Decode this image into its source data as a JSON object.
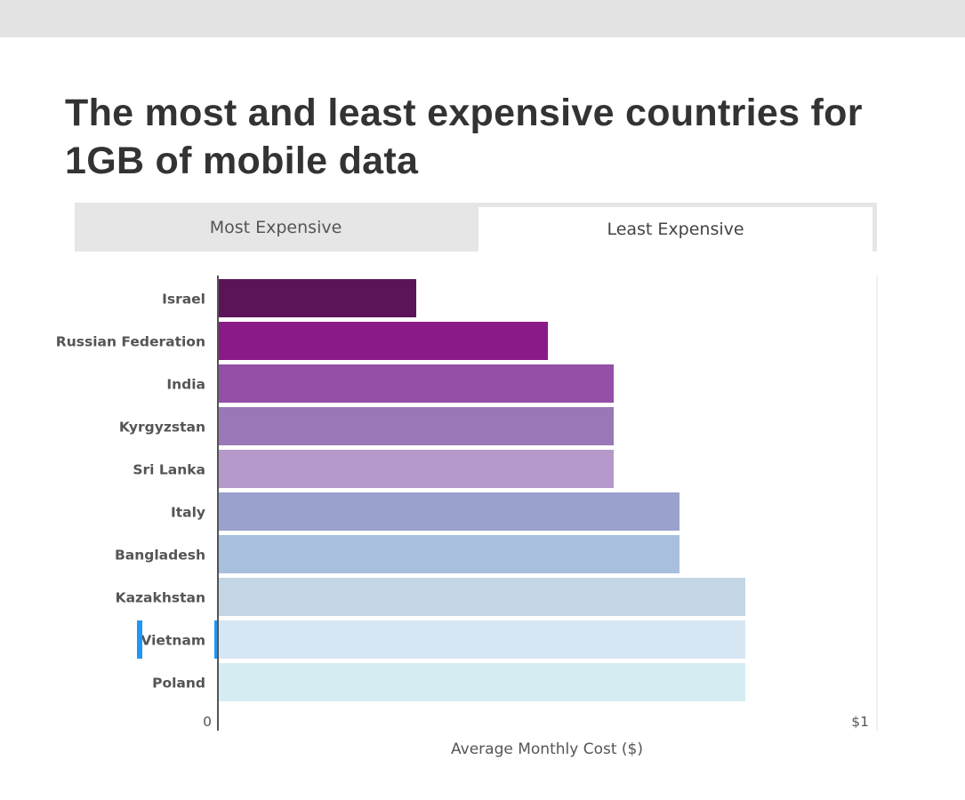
{
  "header": {
    "title": "The most and least expensive countries for 1GB of mobile data"
  },
  "tabs": [
    {
      "label": "Most Expensive",
      "selected": false
    },
    {
      "label": "Least Expensive",
      "selected": true
    }
  ],
  "chart_data": {
    "type": "bar",
    "orientation": "horizontal",
    "categories": [
      "Israel",
      "Russian Federation",
      "India",
      "Kyrgyzstan",
      "Sri Lanka",
      "Italy",
      "Bangladesh",
      "Kazakhstan",
      "Vietnam",
      "Poland"
    ],
    "values": [
      0.3,
      0.5,
      0.6,
      0.6,
      0.6,
      0.7,
      0.7,
      0.8,
      0.8,
      0.8
    ],
    "colors": [
      "#5c1458",
      "#8a1a88",
      "#944fa6",
      "#9a77b6",
      "#b499ca",
      "#99a1cc",
      "#a8bfdd",
      "#c4d6e6",
      "#d6e7f3",
      "#d5edf2"
    ],
    "highlighted": "Vietnam",
    "highlight_color": "#2196f3",
    "xlim": [
      0,
      1
    ],
    "x_tick_labels": [
      "0",
      "$1"
    ],
    "xlabel": "Average Monthly Cost ($)",
    "ylabel": "",
    "grid": false,
    "legend": "none"
  }
}
